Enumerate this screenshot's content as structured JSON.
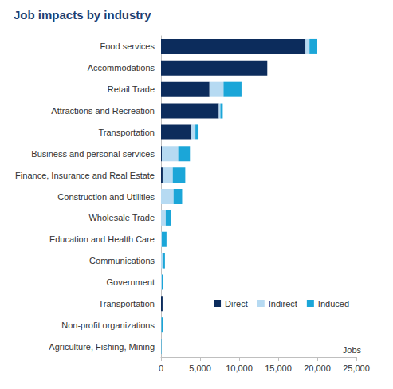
{
  "chart_data": {
    "type": "bar",
    "title": "Job impacts by industry",
    "orientation": "horizontal",
    "stacked": true,
    "grid": false,
    "legend": "lower right",
    "xlabel": "Jobs",
    "categories": [
      "Food services",
      "Accommodations",
      "Retail Trade",
      "Attractions and Recreation",
      "Transportation",
      "Business and personal services",
      "Finance, Insurance and Real Estate",
      "Construction and Utilities",
      "Wholesale Trade",
      "Education and Health Care",
      "Communications",
      "Government",
      "Transportation",
      "Non-profit organizations",
      "Agriculture, Fishing, Mining"
    ],
    "series": [
      {
        "name": "Direct",
        "color": "#0c2c5c",
        "values": [
          18500,
          13600,
          6200,
          7400,
          3900,
          100,
          200,
          0,
          0,
          0,
          0,
          0,
          200,
          0,
          0
        ]
      },
      {
        "name": "Indirect",
        "color": "#b6daf2",
        "values": [
          500,
          0,
          1800,
          200,
          500,
          2100,
          1300,
          1600,
          600,
          100,
          200,
          100,
          50,
          50,
          30
        ]
      },
      {
        "name": "Induced",
        "color": "#1ba6d8",
        "values": [
          1000,
          0,
          2300,
          300,
          400,
          1500,
          1600,
          1100,
          700,
          600,
          300,
          200,
          50,
          200,
          50
        ]
      }
    ],
    "xlim": [
      0,
      25000
    ],
    "xticks": [
      0,
      {
        "value": 5000,
        "label": "5,000"
      },
      {
        "value": 10000,
        "label": "10,000"
      },
      {
        "value": 15000,
        "label": "15,000"
      },
      {
        "value": 20000,
        "label": "20,000"
      },
      {
        "value": 25000,
        "label": "25,000"
      }
    ]
  }
}
